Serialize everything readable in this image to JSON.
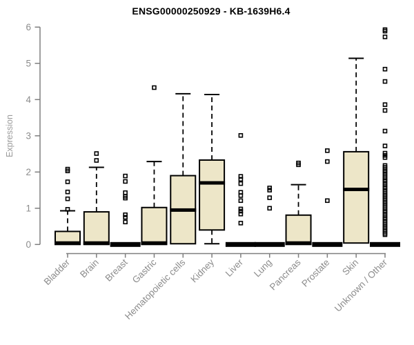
{
  "chart_data": {
    "type": "boxplot",
    "title": "ENSG00000250929 - KB-1639H6.4",
    "ylabel": "Expression",
    "xlabel": "",
    "ylim": [
      0,
      6
    ],
    "yticks": [
      0,
      1,
      2,
      3,
      4,
      5,
      6
    ],
    "grid": false,
    "legend": null,
    "categories": [
      "Bladder",
      "Brain",
      "Breast",
      "Gastric",
      "Hematopoietic cells",
      "Kidney",
      "Liver",
      "Lung",
      "Pancreas",
      "Prostate",
      "Skin",
      "Unknown / Other"
    ],
    "series": [
      {
        "name": "Bladder",
        "whisker_low": 0,
        "q1": 0,
        "median": 0.04,
        "q3": 0.36,
        "whisker_high": 0.93,
        "outliers": [
          0.97,
          1.26,
          1.45,
          1.73,
          2.03,
          2.08
        ]
      },
      {
        "name": "Brain",
        "whisker_low": 0,
        "q1": 0,
        "median": 0.04,
        "q3": 0.9,
        "whisker_high": 2.13,
        "outliers": [
          2.32,
          2.51
        ]
      },
      {
        "name": "Breast",
        "whisker_low": 0,
        "q1": 0,
        "median": 0,
        "q3": 0,
        "whisker_high": 0,
        "outliers": [
          0.62,
          0.75,
          0.82,
          1.28,
          1.33,
          1.43,
          1.74,
          1.89
        ]
      },
      {
        "name": "Gastric",
        "whisker_low": 0,
        "q1": 0,
        "median": 0.04,
        "q3": 1.02,
        "whisker_high": 2.29,
        "outliers": [
          4.33
        ]
      },
      {
        "name": "Hematopoietic cells",
        "whisker_low": 0.02,
        "q1": 0.02,
        "median": 0.95,
        "q3": 1.9,
        "whisker_high": 4.16,
        "outliers": []
      },
      {
        "name": "Kidney",
        "whisker_low": 0.02,
        "q1": 0.4,
        "median": 1.7,
        "q3": 2.33,
        "whisker_high": 4.14,
        "outliers": []
      },
      {
        "name": "Liver",
        "whisker_low": 0,
        "q1": 0,
        "median": 0,
        "q3": 0,
        "whisker_high": 0,
        "outliers": [
          0.59,
          0.84,
          0.92,
          0.98,
          1.21,
          1.35,
          1.44,
          1.68,
          1.8,
          1.88,
          3.01
        ]
      },
      {
        "name": "Lung",
        "whisker_low": 0,
        "q1": 0,
        "median": 0,
        "q3": 0,
        "whisker_high": 0,
        "outliers": [
          1.0,
          1.29,
          1.5,
          1.56
        ]
      },
      {
        "name": "Pancreas",
        "whisker_low": 0,
        "q1": 0,
        "median": 0.04,
        "q3": 0.81,
        "whisker_high": 1.65,
        "outliers": [
          2.2,
          2.25
        ]
      },
      {
        "name": "Prostate",
        "whisker_low": 0,
        "q1": 0,
        "median": 0,
        "q3": 0,
        "whisker_high": 0,
        "outliers": [
          1.21,
          2.29,
          2.59
        ]
      },
      {
        "name": "Skin",
        "whisker_low": 0.04,
        "q1": 0.04,
        "median": 1.52,
        "q3": 2.56,
        "whisker_high": 5.14,
        "outliers": []
      },
      {
        "name": "Unknown / Other",
        "whisker_low": 0,
        "q1": 0,
        "median": 0,
        "q3": 0,
        "whisker_high": 0,
        "outliers": [
          0.27,
          0.31,
          0.36,
          0.41,
          0.46,
          0.5,
          0.55,
          0.6,
          0.65,
          0.7,
          0.74,
          0.79,
          0.84,
          0.89,
          0.93,
          0.98,
          1.03,
          1.08,
          1.13,
          1.17,
          1.22,
          1.27,
          1.32,
          1.36,
          1.41,
          1.46,
          1.51,
          1.56,
          1.6,
          1.65,
          1.7,
          1.75,
          1.79,
          1.84,
          1.89,
          1.94,
          1.99,
          2.03,
          2.08,
          2.13,
          2.18,
          2.4,
          2.46,
          2.52,
          2.72,
          3.13,
          3.7,
          3.86,
          4.5,
          4.84,
          5.73,
          5.89,
          5.93
        ]
      }
    ]
  },
  "colors": {
    "box_fill": "#EDE6C8",
    "box_stroke": "#000000",
    "median": "#000000",
    "whisker": "#000000",
    "outlier": "#000000",
    "axis_line": "#7e7e7e",
    "tick_label": "#8c8c8c",
    "title": "#000000",
    "background": "#FFFFFF"
  }
}
